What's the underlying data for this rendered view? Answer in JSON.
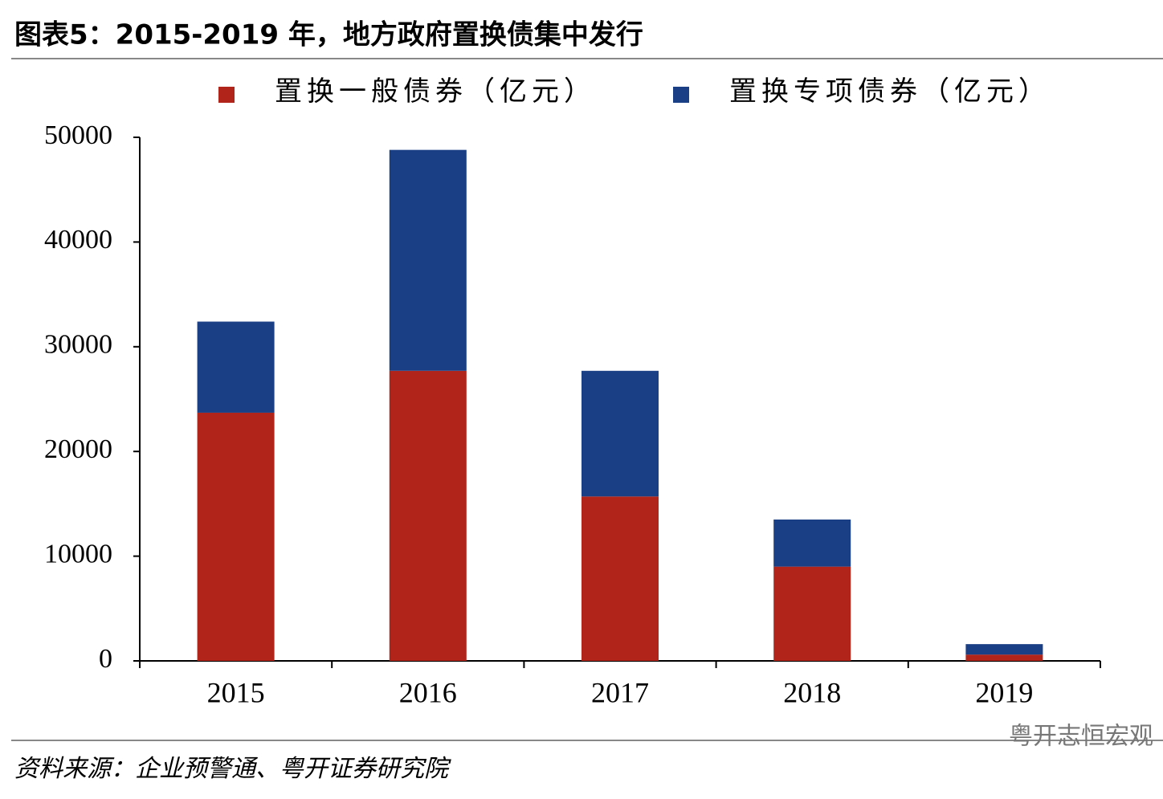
{
  "title": "图表5：2015-2019 年，地方政府置换债集中发行",
  "source": "资料来源：企业预警通、粤开证券研究院",
  "watermark": "粤开志恒宏观",
  "chart_data": {
    "type": "stacked-bar",
    "categories": [
      "2015",
      "2016",
      "2017",
      "2018",
      "2019"
    ],
    "series": [
      {
        "name": "置换一般债券（亿元）",
        "color": "#b0241a",
        "values": [
          23700,
          27700,
          15700,
          9000,
          600
        ]
      },
      {
        "name": "置换专项债券（亿元）",
        "color": "#1a3f85",
        "values": [
          8700,
          21100,
          12000,
          4500,
          1000
        ]
      }
    ],
    "ylim": [
      0,
      50000
    ],
    "yticks": [
      0,
      10000,
      20000,
      30000,
      40000,
      50000
    ],
    "grid": false,
    "legend": "top"
  }
}
